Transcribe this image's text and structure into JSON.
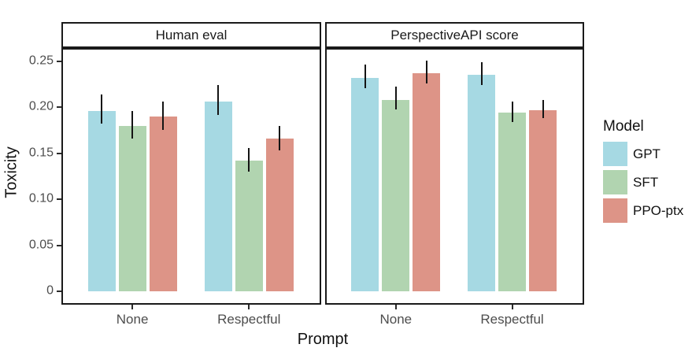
{
  "chart_data": {
    "type": "bar",
    "title": "",
    "xlabel": "Prompt",
    "ylabel": "Toxicity",
    "categories": [
      "None",
      "Respectful"
    ],
    "ylim": [
      0,
      0.25
    ],
    "yticks": [
      0,
      0.05,
      0.1,
      0.15,
      0.2,
      0.25
    ],
    "ytick_labels": [
      "0",
      "0.05",
      "0.10",
      "0.15",
      "0.20",
      "0.25"
    ],
    "grid": false,
    "legend_title": "Model",
    "legend_position": "right",
    "error_bars": true,
    "facets": [
      {
        "title": "Human eval",
        "series": [
          {
            "name": "GPT",
            "color": "#a6d9e3",
            "values": [
              0.196,
              0.206
            ],
            "error_low": [
              0.182,
              0.192
            ],
            "error_high": [
              0.214,
              0.224
            ]
          },
          {
            "name": "SFT",
            "color": "#b1d4b0",
            "values": [
              0.18,
              0.142
            ],
            "error_low": [
              0.166,
              0.13
            ],
            "error_high": [
              0.196,
              0.156
            ]
          },
          {
            "name": "PPO-ptx",
            "color": "#dd9487",
            "values": [
              0.19,
              0.166
            ],
            "error_low": [
              0.175,
              0.153
            ],
            "error_high": [
              0.206,
              0.18
            ]
          }
        ]
      },
      {
        "title": "PerspectiveAPI score",
        "series": [
          {
            "name": "GPT",
            "color": "#a6d9e3",
            "values": [
              0.232,
              0.235
            ],
            "error_low": [
              0.221,
              0.224
            ],
            "error_high": [
              0.246,
              0.249
            ]
          },
          {
            "name": "SFT",
            "color": "#b1d4b0",
            "values": [
              0.208,
              0.194
            ],
            "error_low": [
              0.198,
              0.184
            ],
            "error_high": [
              0.222,
              0.206
            ]
          },
          {
            "name": "PPO-ptx",
            "color": "#dd9487",
            "values": [
              0.237,
              0.197
            ],
            "error_low": [
              0.226,
              0.188
            ],
            "error_high": [
              0.251,
              0.208
            ]
          }
        ]
      }
    ]
  }
}
